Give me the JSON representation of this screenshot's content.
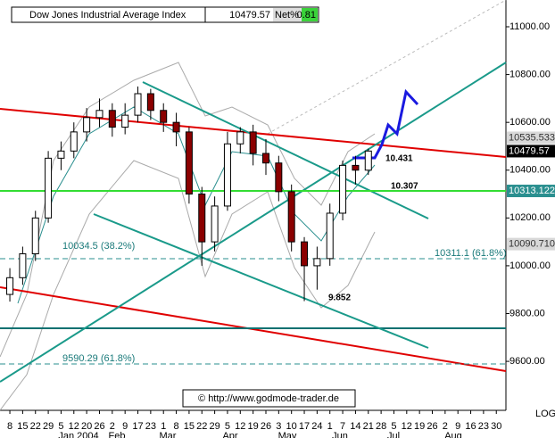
{
  "header": {
    "title": "Dow Jones Industrial Average Index",
    "last": "10479.57",
    "net_label": "Net%",
    "net": "0.81"
  },
  "chart_data": {
    "type": "candlestick",
    "x": [
      0,
      1,
      2,
      3,
      4,
      5,
      6,
      7,
      8,
      9,
      10,
      11,
      12,
      13,
      14,
      15,
      16,
      17,
      18,
      19,
      20,
      21,
      22,
      23,
      24,
      25,
      26,
      27,
      28
    ],
    "open": [
      9880,
      9950,
      10050,
      10200,
      10450,
      10480,
      10560,
      10620,
      10650,
      10580,
      10630,
      10720,
      10650,
      10600,
      10560,
      10300,
      10100,
      10250,
      10510,
      10560,
      10470,
      10430,
      10310,
      10100,
      10000,
      10030,
      10220,
      10420,
      10400
    ],
    "high": [
      9990,
      10080,
      10230,
      10480,
      10520,
      10600,
      10660,
      10700,
      10680,
      10680,
      10750,
      10740,
      10680,
      10640,
      10580,
      10330,
      10290,
      10560,
      10580,
      10590,
      10530,
      10460,
      10340,
      10120,
      10080,
      10260,
      10440,
      10460,
      10490
    ],
    "low": [
      9850,
      9920,
      10020,
      10180,
      10400,
      10450,
      10520,
      10580,
      10540,
      10550,
      10600,
      10610,
      10560,
      10500,
      10260,
      10000,
      10060,
      10230,
      10470,
      10420,
      10380,
      10270,
      10060,
      9852,
      9900,
      10000,
      10190,
      10340,
      10380
    ],
    "close": [
      9950,
      10050,
      10200,
      10450,
      10480,
      10560,
      10620,
      10650,
      10580,
      10630,
      10720,
      10650,
      10600,
      10560,
      10300,
      10100,
      10250,
      10510,
      10560,
      10470,
      10430,
      10310,
      10100,
      10000,
      10030,
      10220,
      10420,
      10400,
      10480
    ],
    "ylim": [
      9395,
      11112
    ],
    "yticks": [
      {
        "value": 9600,
        "label": "9600.00"
      },
      {
        "value": 9800,
        "label": "9800.00"
      },
      {
        "value": 10000,
        "label": "10000.00"
      },
      {
        "value": 10200,
        "label": "10200.00"
      },
      {
        "value": 10400,
        "label": "10400.00"
      },
      {
        "value": 10600,
        "label": "10600.00"
      },
      {
        "value": 10800,
        "label": "10800.00"
      },
      {
        "value": 11000,
        "label": "11000.00"
      }
    ],
    "xlim": [
      -0.77,
      38.75
    ],
    "xticks": [
      {
        "value": 0,
        "label": "8"
      },
      {
        "value": 1,
        "label": "15"
      },
      {
        "value": 2,
        "label": "22"
      },
      {
        "value": 3,
        "label": "29"
      },
      {
        "value": 4,
        "label": "5"
      },
      {
        "value": 5,
        "label": "12"
      },
      {
        "value": 6,
        "label": "20"
      },
      {
        "value": 7,
        "label": "26"
      },
      {
        "value": 8,
        "label": "2"
      },
      {
        "value": 9,
        "label": "9"
      },
      {
        "value": 10,
        "label": "17"
      },
      {
        "value": 11,
        "label": "23"
      },
      {
        "value": 12,
        "label": "1"
      },
      {
        "value": 13,
        "label": "8"
      },
      {
        "value": 14,
        "label": "15"
      },
      {
        "value": 15,
        "label": "22"
      },
      {
        "value": 16,
        "label": "29"
      },
      {
        "value": 17,
        "label": "5"
      },
      {
        "value": 18,
        "label": "12"
      },
      {
        "value": 19,
        "label": "19"
      },
      {
        "value": 20,
        "label": "26"
      },
      {
        "value": 21,
        "label": "3"
      },
      {
        "value": 22,
        "label": "10"
      },
      {
        "value": 23,
        "label": "17"
      },
      {
        "value": 24,
        "label": "24"
      },
      {
        "value": 25,
        "label": "1"
      },
      {
        "value": 26,
        "label": "7"
      },
      {
        "value": 27,
        "label": "14"
      },
      {
        "value": 28,
        "label": "21"
      },
      {
        "value": 29,
        "label": "28"
      },
      {
        "value": 30,
        "label": "5"
      },
      {
        "value": 31,
        "label": "12"
      },
      {
        "value": 32,
        "label": "19"
      },
      {
        "value": 33,
        "label": "26"
      },
      {
        "value": 34,
        "label": "2"
      },
      {
        "value": 35,
        "label": "9"
      },
      {
        "value": 36,
        "label": "16"
      },
      {
        "value": 37,
        "label": "23"
      },
      {
        "value": 38,
        "label": "30"
      }
    ],
    "month_labels": [
      "Jan 2004",
      "Feb",
      "Mar",
      "Apr",
      "May",
      "Jun",
      "Jul",
      "Aug"
    ],
    "price_labels": [
      10535.533,
      10479.57,
      10313.122,
      {
        "value": 10090.71,
        "label": "10090.710"
      }
    ],
    "annotations": [
      "10.431",
      "10.307",
      "9.852",
      "10034.5 (38.2%)",
      "10311.1 (61.8%)",
      "9590.29 (61.8%)"
    ],
    "log_label": "LOG"
  },
  "copyright": "© http://www.godmode-trader.de"
}
